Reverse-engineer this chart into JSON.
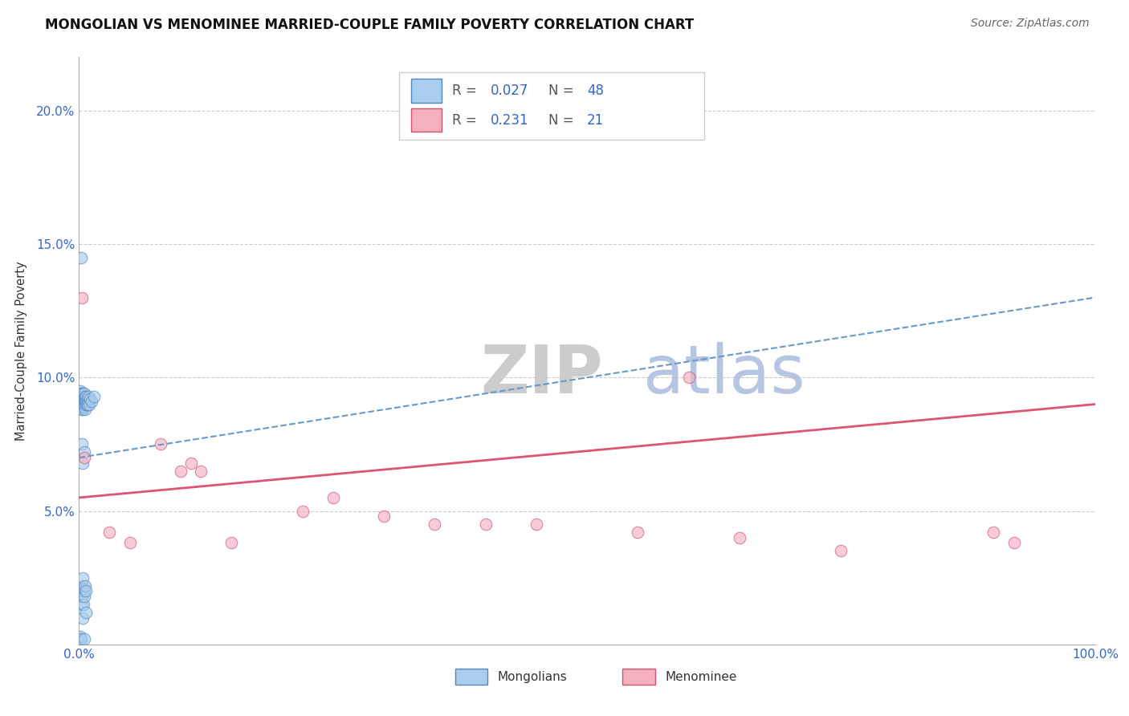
{
  "title": "MONGOLIAN VS MENOMINEE MARRIED-COUPLE FAMILY POVERTY CORRELATION CHART",
  "source": "Source: ZipAtlas.com",
  "ylabel": "Married-Couple Family Poverty",
  "xlim": [
    0,
    100
  ],
  "ylim": [
    0,
    22
  ],
  "yticks": [
    5,
    10,
    15,
    20
  ],
  "ytick_labels": [
    "5.0%",
    "10.0%",
    "15.0%",
    "20.0%"
  ],
  "xtick_labels": [
    "0.0%",
    "100.0%"
  ],
  "mongolian_R": "0.027",
  "mongolian_N": "48",
  "menominee_R": "0.231",
  "menominee_N": "21",
  "mongolian_face_color": "#aaccee",
  "mongolian_edge_color": "#5588bb",
  "menominee_face_color": "#f5b0c0",
  "menominee_edge_color": "#cc5570",
  "mongolian_line_color": "#6699cc",
  "menominee_line_color": "#dd5575",
  "watermark_color_zip": "#d0d8e0",
  "watermark_color_atlas": "#99bbdd",
  "mongo_trend_start": 7.0,
  "mongo_trend_end": 13.0,
  "menom_trend_start": 5.5,
  "menom_trend_end": 9.0,
  "mongolian_x": [
    0.1,
    0.1,
    0.15,
    0.15,
    0.2,
    0.2,
    0.2,
    0.25,
    0.25,
    0.3,
    0.3,
    0.3,
    0.3,
    0.35,
    0.35,
    0.35,
    0.4,
    0.4,
    0.4,
    0.4,
    0.45,
    0.45,
    0.5,
    0.5,
    0.5,
    0.5,
    0.55,
    0.55,
    0.6,
    0.6,
    0.6,
    0.65,
    0.65,
    0.7,
    0.7,
    0.75,
    0.8,
    0.85,
    0.9,
    0.95,
    1.0,
    1.1,
    1.2,
    1.5,
    0.2,
    0.3,
    0.4,
    0.5
  ],
  "mongolian_y": [
    9.5,
    9.2,
    9.3,
    9.0,
    9.4,
    9.1,
    8.9,
    9.2,
    9.0,
    9.3,
    9.1,
    8.8,
    9.4,
    9.0,
    9.2,
    8.9,
    9.3,
    9.1,
    8.8,
    9.4,
    9.0,
    9.2,
    9.3,
    9.1,
    8.9,
    9.0,
    9.2,
    9.4,
    9.1,
    8.8,
    9.3,
    9.0,
    9.2,
    9.1,
    9.3,
    9.0,
    9.2,
    9.0,
    9.1,
    9.3,
    9.0,
    9.2,
    9.1,
    9.3,
    14.5,
    7.5,
    6.8,
    7.2
  ],
  "mongolian_x2": [
    0.1,
    0.15,
    0.2,
    0.25,
    0.3,
    0.3,
    0.35,
    0.4,
    0.4,
    0.45,
    0.5,
    0.5,
    0.55,
    0.6,
    0.65,
    0.7
  ],
  "mongolian_y2": [
    0.2,
    0.3,
    0.2,
    1.5,
    1.8,
    2.0,
    2.2,
    2.5,
    1.0,
    1.5,
    2.0,
    0.2,
    1.8,
    2.2,
    1.2,
    2.0
  ],
  "menominee_x": [
    0.3,
    0.5,
    5.0,
    10.0,
    11.0,
    12.0,
    22.0,
    25.0,
    35.0,
    45.0,
    55.0,
    60.0,
    65.0,
    75.0,
    90.0,
    92.0,
    3.0,
    8.0,
    15.0,
    30.0,
    40.0
  ],
  "menominee_y": [
    13.0,
    7.0,
    3.8,
    6.5,
    6.8,
    6.5,
    5.0,
    5.5,
    4.5,
    4.5,
    4.2,
    10.0,
    4.0,
    3.5,
    4.2,
    3.8,
    4.2,
    7.5,
    3.8,
    4.8,
    4.5
  ]
}
